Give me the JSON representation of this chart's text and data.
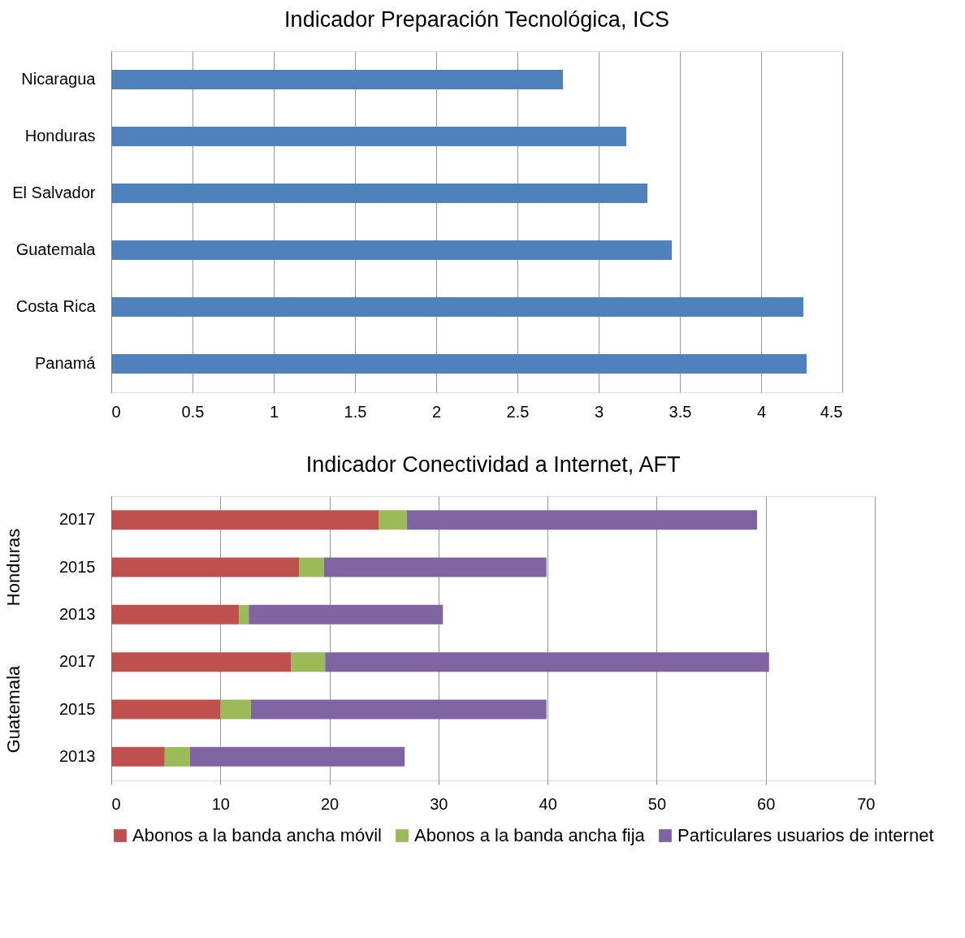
{
  "chart_data": [
    {
      "type": "bar",
      "title": "Indicador Preparación Tecnológica, ICS",
      "orientation": "horizontal",
      "categories": [
        "Nicaragua",
        "Honduras",
        "El Salvador",
        "Guatemala",
        "Costa Rica",
        "Panamá"
      ],
      "values": [
        2.78,
        3.17,
        3.3,
        3.45,
        4.26,
        4.28
      ],
      "color": "#4f81bd",
      "xlim": [
        0,
        4.5
      ],
      "xticks": [
        0,
        0.5,
        1,
        1.5,
        2,
        2.5,
        3,
        3.5,
        4,
        4.5
      ],
      "grid": "x",
      "legend": false
    },
    {
      "type": "bar",
      "title": "Indicador Conectividad a Internet, AFT",
      "orientation": "horizontal",
      "stacked": true,
      "categories": [
        "2017",
        "2015",
        "2013",
        "2017",
        "2015",
        "2013"
      ],
      "annotations": [
        "Honduras",
        "Guatemala"
      ],
      "series": [
        {
          "name": "Abonos a la banda ancha móvil",
          "color": "#c0504d",
          "values": [
            24.5,
            17.2,
            11.7,
            16.5,
            10.0,
            4.9
          ]
        },
        {
          "name": "Abonos a la banda ancha fija",
          "color": "#9bbb59",
          "values": [
            2.6,
            2.3,
            0.9,
            3.1,
            2.8,
            2.3
          ]
        },
        {
          "name": "Particulares usuarios de internet",
          "color": "#8064a2",
          "values": [
            32.1,
            20.4,
            17.8,
            40.7,
            27.1,
            19.7
          ]
        }
      ],
      "xlim": [
        0,
        70
      ],
      "xticks": [
        0,
        10,
        20,
        30,
        40,
        50,
        60,
        70
      ],
      "grid": "x",
      "legend": "bottom"
    }
  ]
}
